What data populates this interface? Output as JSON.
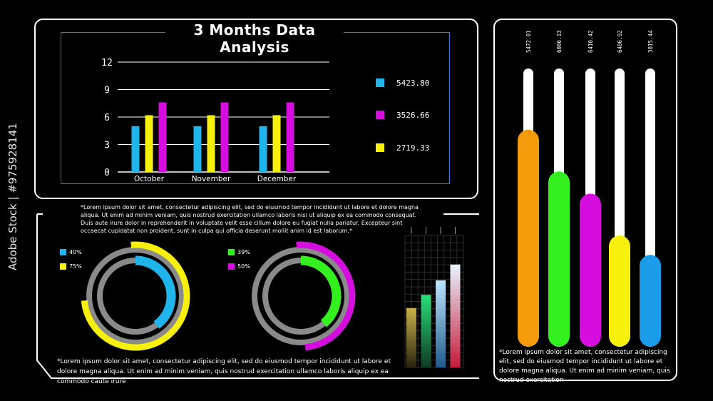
{
  "title": "3 Months Data Analysis",
  "stock_watermark": "Adobe Stock | #975928141",
  "colors": {
    "cyan": "#1fb5ea",
    "yellow": "#f6f00c",
    "magenta": "#d60ddf",
    "green": "#33f01e",
    "orange": "#f49b0b",
    "blue": "#1a9ce8"
  },
  "chart_data": [
    {
      "type": "bar",
      "categories": [
        "October",
        "November",
        "December"
      ],
      "series": [
        {
          "name": "5423.80",
          "values": [
            5,
            5,
            5
          ],
          "color": "#1fb5ea"
        },
        {
          "name": "2719.33",
          "values": [
            6.2,
            6.2,
            6.2
          ],
          "color": "#f6f00c"
        },
        {
          "name": "3526.66",
          "values": [
            7.6,
            7.6,
            7.6
          ],
          "color": "#d60ddf"
        }
      ],
      "yticks": [
        0,
        3,
        6,
        9,
        12
      ],
      "ylim": [
        0,
        12
      ],
      "legend": [
        {
          "label": "5423.80",
          "color": "#1fb5ea"
        },
        {
          "label": "3526.66",
          "color": "#d60ddf"
        },
        {
          "label": "2719.33",
          "color": "#f6f00c"
        }
      ]
    },
    {
      "type": "bar",
      "orientation": "vertical-gauge",
      "categories": [
        "5472.01",
        "6006.13",
        "6410.42",
        "6406.92",
        "3015.44"
      ],
      "values": [
        0.78,
        0.63,
        0.55,
        0.4,
        0.33
      ],
      "colors": [
        "#f49b0b",
        "#33f01e",
        "#d60ddf",
        "#f6f00c",
        "#1a9ce8"
      ]
    },
    {
      "type": "pie",
      "subtype": "donut-rings",
      "legend": [
        {
          "label": "40%",
          "color": "#1fb5ea"
        },
        {
          "label": "75%",
          "color": "#f6f00c"
        }
      ],
      "values": [
        40,
        75
      ]
    },
    {
      "type": "pie",
      "subtype": "donut-rings",
      "legend": [
        {
          "label": "39%",
          "color": "#33f01e"
        },
        {
          "label": "50%",
          "color": "#d60ddf"
        }
      ],
      "values": [
        39,
        50
      ]
    },
    {
      "type": "bar",
      "subtype": "gradient-mini",
      "values": [
        0.45,
        0.55,
        0.66,
        0.78
      ],
      "colors": [
        [
          "#c8b24a",
          "#2a2410"
        ],
        [
          "#28e07a",
          "#0f3a20"
        ],
        [
          "#bde6ff",
          "#1f5a8a"
        ],
        [
          "#e8f6ff",
          "#c41a3a"
        ]
      ]
    }
  ],
  "texts": {
    "para_top": "*Lorem ipsum dolor sit amet, consectetur adipiscing elit, sed do eiusmod tempor incididunt ut labore et dolore magna aliqua. Ut enim ad minim veniam, quis nostrud exercitation ullamco laboris nisi ut aliquip ex ea commodo consequat. Duis aute irure dolor in reprehenderit in voluptate velit esse cillum dolore eu fugiat nulla pariatur. Excepteur sint occaecat cupidatat non proident, sunt in culpa qui officia deserunt mollit anim id est laborum.*",
    "para_bottom": "*Lorem ipsum dolor sit amet, consectetur adipiscing elit, sed do eiusmod tempor incididunt ut labore et dolore magna aliqua. Ut enim ad minim veniam, quis nostrud exercitation ullamco laboris  aliquip ex ea commodo caute irure",
    "para_right": "*Lorem ipsum dolor sit amet, consectetur adipiscing elit, sed do eiusmod tempor incididunt ut labore et dolore magna aliqua. Ut enim ad minim veniam, quis nostrud exercitation"
  }
}
